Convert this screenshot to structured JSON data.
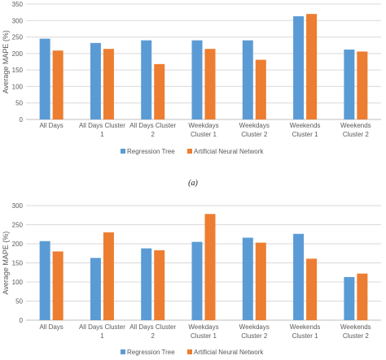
{
  "chart_data": [
    {
      "type": "bar",
      "title": "",
      "xlabel": "",
      "ylabel": "Average MAPE (%)",
      "ylim": [
        0,
        350
      ],
      "ytick_step": 50,
      "grid": true,
      "legend_position": "bottom",
      "categories": [
        [
          "All Days"
        ],
        [
          "All Days Cluster",
          "1"
        ],
        [
          "All Days Cluster",
          "2"
        ],
        [
          "Weekdays",
          "Cluster 1"
        ],
        [
          "Weekdays",
          "Cluster 2"
        ],
        [
          "Weekends",
          "Cluster 1"
        ],
        [
          "Weekends",
          "Cluster 2"
        ]
      ],
      "series": [
        {
          "name": "Regression Tree",
          "color": "#5B9BD5",
          "values": [
            245,
            232,
            240,
            240,
            240,
            313,
            212
          ]
        },
        {
          "name": "Artificial Neural Network",
          "color": "#ED7D31",
          "values": [
            209,
            214,
            168,
            214,
            181,
            320,
            206
          ]
        }
      ],
      "caption": "(a)"
    },
    {
      "type": "bar",
      "title": "",
      "xlabel": "",
      "ylabel": "Average MAPE (%)",
      "ylim": [
        0,
        300
      ],
      "ytick_step": 50,
      "grid": true,
      "legend_position": "bottom",
      "categories": [
        [
          "All Days"
        ],
        [
          "All Days Cluster",
          "1"
        ],
        [
          "All Days Cluster",
          "2"
        ],
        [
          "Weekdays",
          "Cluster 1"
        ],
        [
          "Weekdays",
          "Cluster 2"
        ],
        [
          "Weekends",
          "Cluster 1"
        ],
        [
          "Weekends",
          "Cluster 2"
        ]
      ],
      "series": [
        {
          "name": "Regression Tree",
          "color": "#5B9BD5",
          "values": [
            207,
            163,
            188,
            205,
            216,
            226,
            113
          ]
        },
        {
          "name": "Artificial Neural Network",
          "color": "#ED7D31",
          "values": [
            180,
            230,
            183,
            278,
            203,
            161,
            122
          ]
        }
      ]
    }
  ]
}
